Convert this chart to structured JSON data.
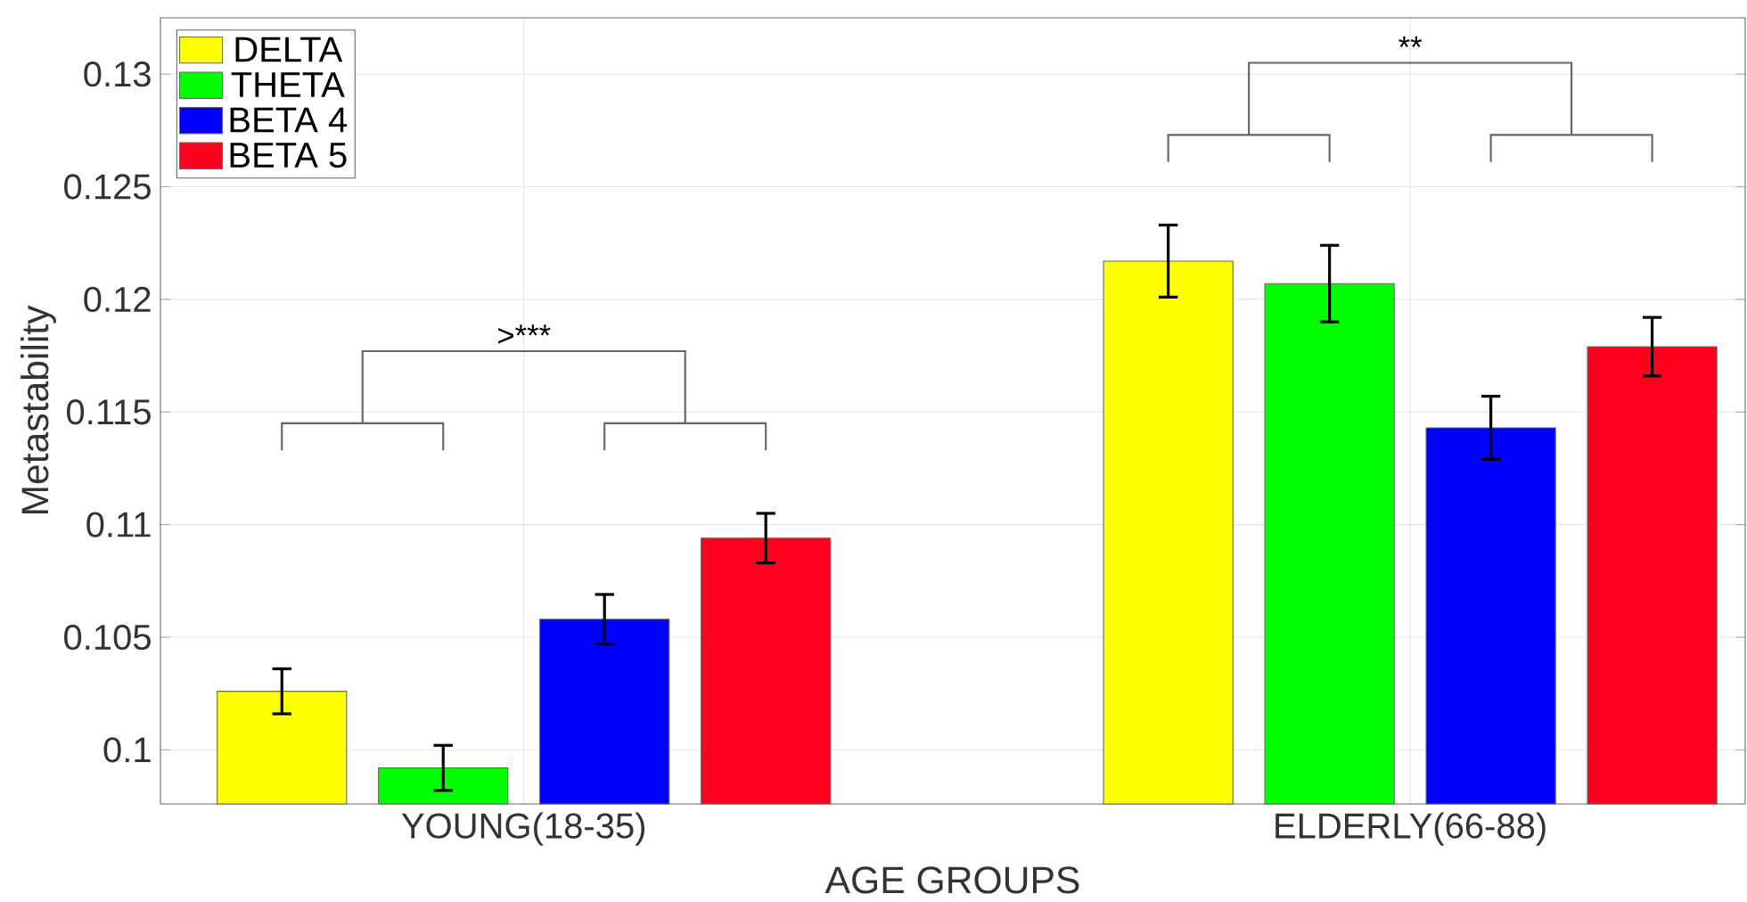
{
  "chart_data": {
    "type": "bar",
    "xlabel": "AGE GROUPS",
    "ylabel": "Metastability",
    "categories": [
      "YOUNG(18-35)",
      "ELDERLY(66-88)"
    ],
    "series": [
      {
        "name": "DELTA",
        "color": "#ffff00",
        "values": [
          0.1026,
          0.1217
        ],
        "errors": [
          0.001,
          0.0016
        ]
      },
      {
        "name": "THETA",
        "color": "#00ff00",
        "values": [
          0.0992,
          0.1207
        ],
        "errors": [
          0.001,
          0.0017
        ]
      },
      {
        "name": "BETA 4",
        "color": "#0000ff",
        "values": [
          0.1058,
          0.1143
        ],
        "errors": [
          0.0011,
          0.0014
        ]
      },
      {
        "name": "BETA 5",
        "color": "#ff001e",
        "values": [
          0.1094,
          0.1179
        ],
        "errors": [
          0.0011,
          0.0013
        ]
      }
    ],
    "ylim": [
      0.0976,
      0.1325
    ],
    "yticks": [
      0.1,
      0.105,
      0.11,
      0.115,
      0.12,
      0.125,
      0.13
    ],
    "grid": true,
    "legend": "top left",
    "annotations": [
      ">***",
      "**"
    ]
  }
}
